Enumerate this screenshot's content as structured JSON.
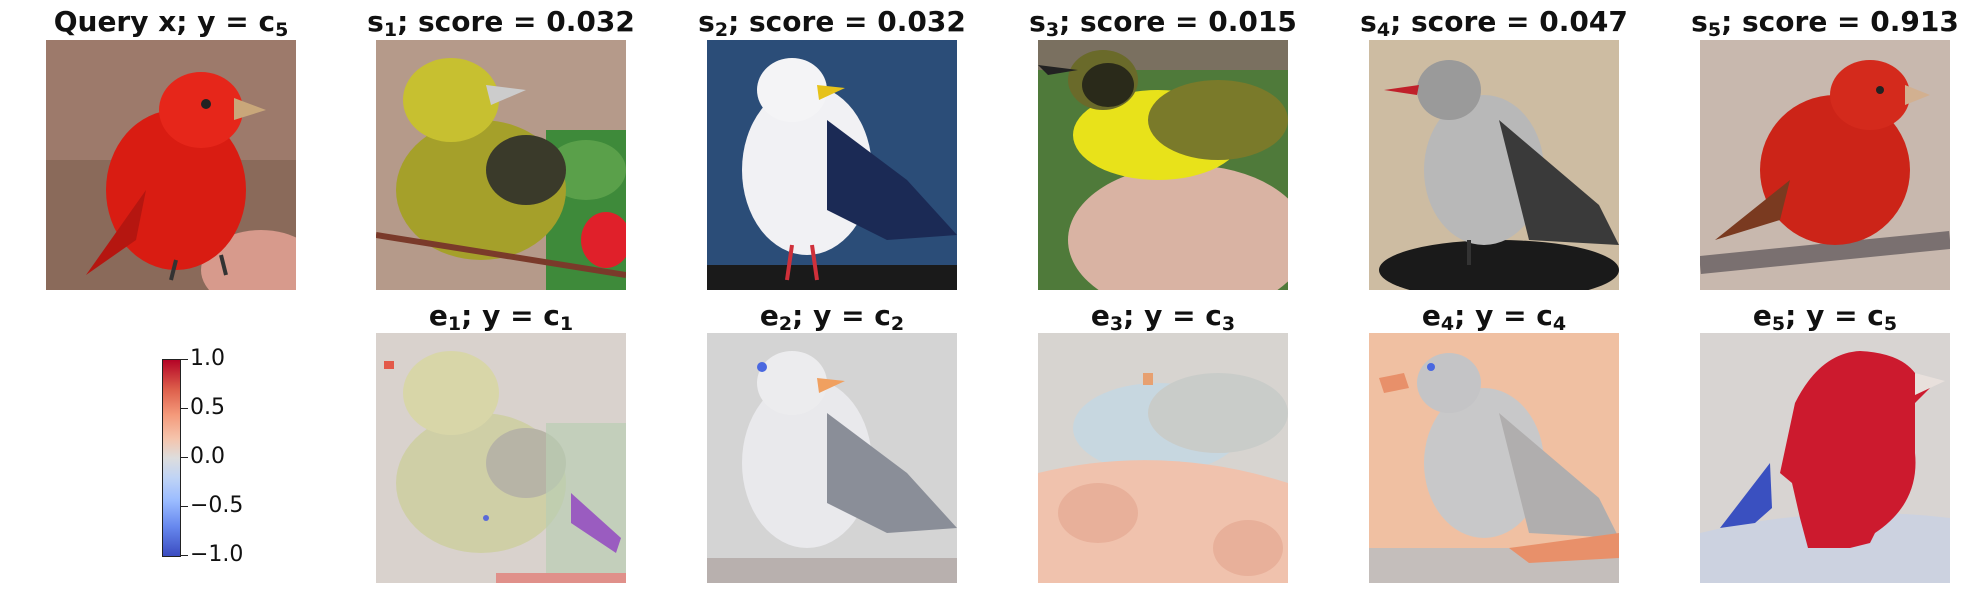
{
  "row1": {
    "query": {
      "title": "Query x; y = c",
      "sub": "5"
    },
    "scores": [
      {
        "sym": "s",
        "sub": "1",
        "rest": "; score = 0.032",
        "score": 0.032
      },
      {
        "sym": "s",
        "sub": "2",
        "rest": "; score = 0.032",
        "score": 0.032
      },
      {
        "sym": "s",
        "sub": "3",
        "rest": "; score = 0.015",
        "score": 0.015
      },
      {
        "sym": "s",
        "sub": "4",
        "rest": "; score = 0.047",
        "score": 0.047
      },
      {
        "sym": "s",
        "sub": "5",
        "rest": "; score = 0.913",
        "score": 0.913
      }
    ]
  },
  "row2": {
    "explanations": [
      {
        "sym": "e",
        "sub": "1",
        "mid": "; y = c",
        "sub2": "1"
      },
      {
        "sym": "e",
        "sub": "2",
        "mid": "; y = c",
        "sub2": "2"
      },
      {
        "sym": "e",
        "sub": "3",
        "mid": "; y = c",
        "sub2": "3"
      },
      {
        "sym": "e",
        "sub": "4",
        "mid": "; y = c",
        "sub2": "4"
      },
      {
        "sym": "e",
        "sub": "5",
        "mid": "; y = c",
        "sub2": "5"
      }
    ]
  },
  "colorbar": {
    "ticks": [
      "1.0",
      "0.5",
      "0.0",
      "−0.5",
      "−1.0"
    ],
    "range": [
      -1.0,
      1.0
    ],
    "colormap": "coolwarm",
    "colors": {
      "high": "#b40426",
      "mid": "#dddddd",
      "low": "#3b4cc0"
    }
  }
}
